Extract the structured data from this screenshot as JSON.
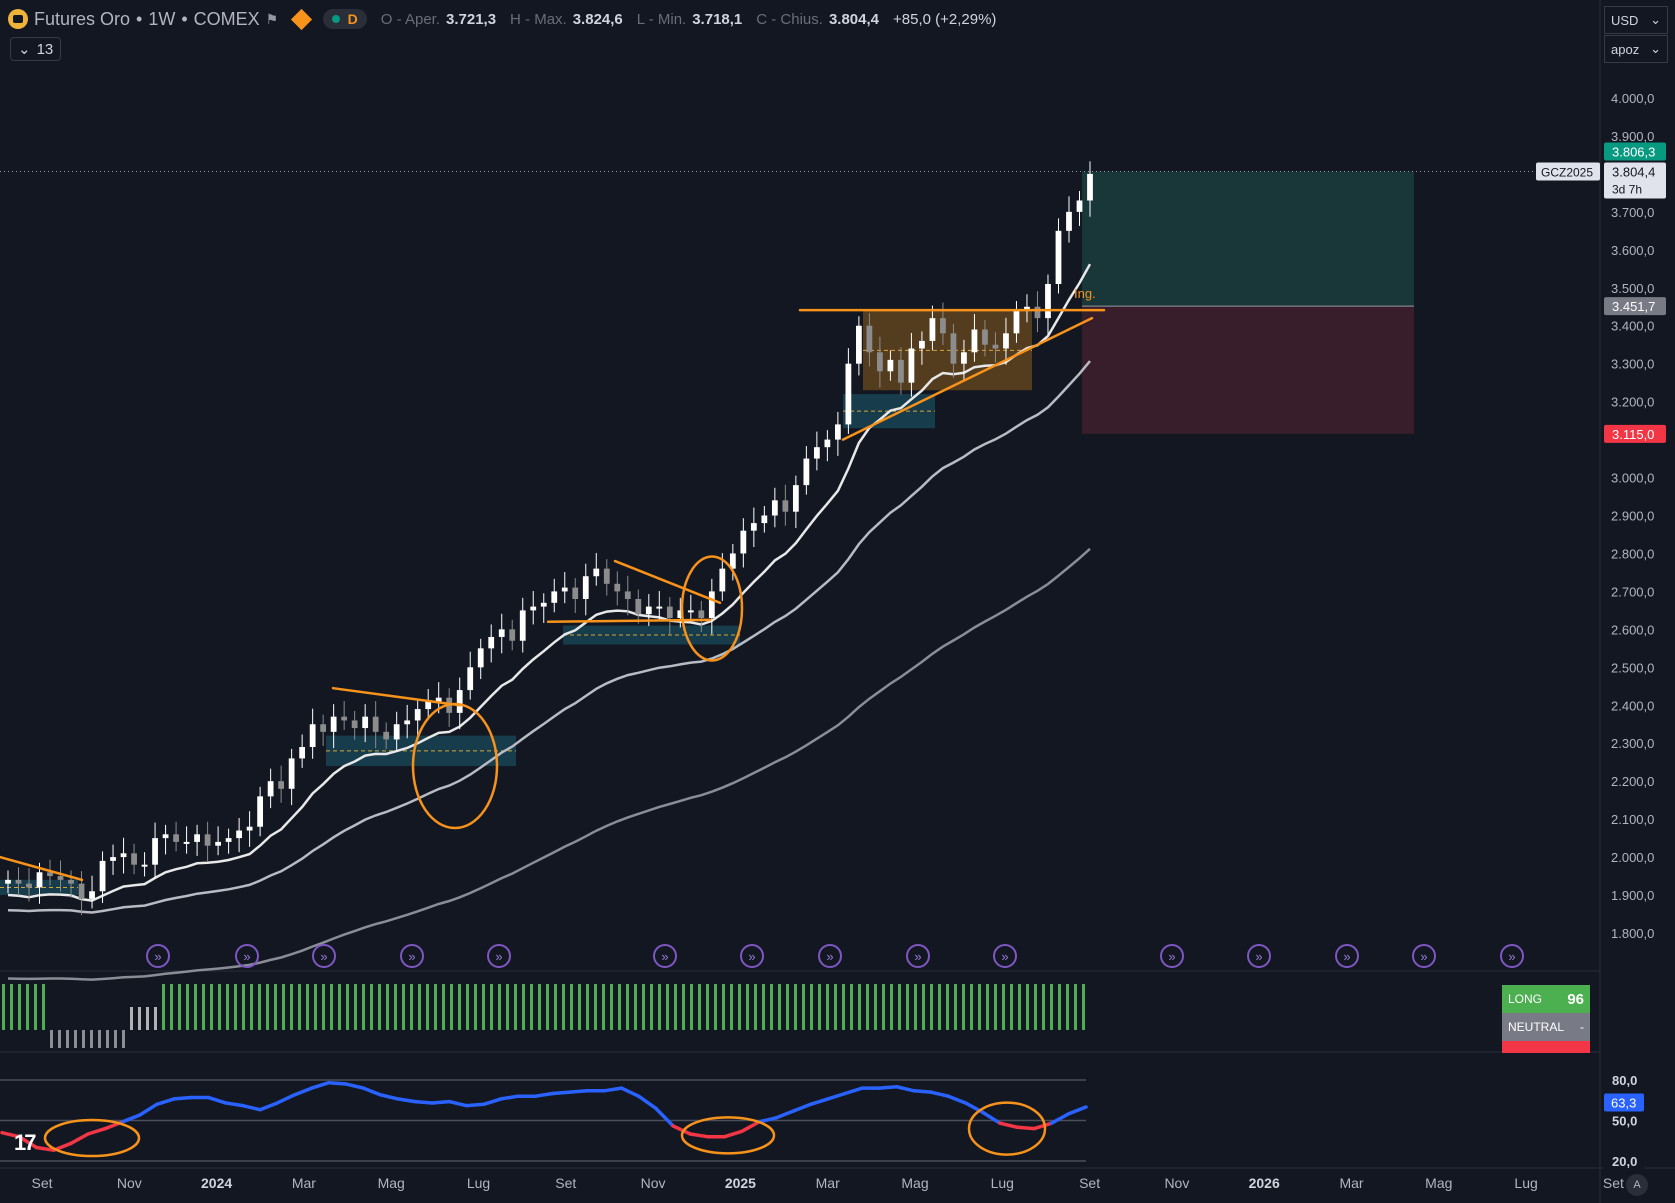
{
  "header": {
    "symbol": "Futures Oro",
    "interval": "1W",
    "exchange": "COMEX",
    "d_badge": "D",
    "ohlc": {
      "open_label": "O - Aper.",
      "open_value": "3.721,3",
      "high_label": "H - Max.",
      "high_value": "3.824,6",
      "low_label": "L - Min.",
      "low_value": "3.718,1",
      "close_label": "C - Chius.",
      "close_value": "3.804,4",
      "change": "+85,0 (+2,29%)"
    },
    "collapse_count": "13"
  },
  "right_controls": {
    "currency": "USD",
    "unit": "apoz"
  },
  "colors": {
    "background": "#131722",
    "bull": "#ffffff",
    "bear": "#8c8c8c",
    "teal_label": "#089981",
    "red_label": "#f23645",
    "orange": "#f7931a",
    "tp_zone": "#1b3b3b",
    "sl_zone": "#3d1f2b",
    "range_box": "#6b4a1e",
    "demand_box": "#1a4a59"
  },
  "chart_data": {
    "type": "candlestick",
    "price_axis_ticks": [
      "4.000,0",
      "3.900,0",
      "3.700,0",
      "3.600,0",
      "3.500,0",
      "3.400,0",
      "3.300,0",
      "3.200,0",
      "3.000,0",
      "2.900,0",
      "2.800,0",
      "2.700,0",
      "2.600,0",
      "2.500,0",
      "2.400,0",
      "2.300,0",
      "2.200,0",
      "2.100,0",
      "2.000,0",
      "1.900,0",
      "1.800,0"
    ],
    "price_range": [
      1740,
      4100
    ],
    "time_axis_labels": [
      "Set",
      "Nov",
      "2024",
      "Mar",
      "Mag",
      "Lug",
      "Set",
      "Nov",
      "2025",
      "Mar",
      "Mag",
      "Lug",
      "Set",
      "Nov",
      "2026",
      "Mar",
      "Mag",
      "Lug",
      "Set"
    ],
    "price_labels": {
      "teal_top": "3.806,3",
      "last": "3.804,4",
      "countdown": "3d 7h",
      "symbol_tag": "GCZ2025",
      "entry": "3.451,7",
      "stop": "3.115,0"
    },
    "position": {
      "entry_price": 3451.7,
      "target_price": 3806.3,
      "stop_price": 3115.0,
      "entry_text": "Ing."
    },
    "candles_close_approx": [
      1940,
      1930,
      1920,
      1960,
      1950,
      1940,
      1930,
      1890,
      1910,
      1990,
      2000,
      2010,
      1980,
      1980,
      2050,
      2060,
      2040,
      2040,
      2060,
      2030,
      2040,
      2050,
      2070,
      2080,
      2160,
      2200,
      2180,
      2260,
      2290,
      2350,
      2330,
      2370,
      2360,
      2340,
      2370,
      2330,
      2310,
      2350,
      2360,
      2390,
      2410,
      2420,
      2380,
      2440,
      2500,
      2550,
      2580,
      2600,
      2570,
      2650,
      2660,
      2670,
      2700,
      2710,
      2680,
      2740,
      2760,
      2720,
      2700,
      2680,
      2640,
      2660,
      2660,
      2630,
      2650,
      2650,
      2630,
      2700,
      2760,
      2800,
      2860,
      2880,
      2900,
      2940,
      2910,
      2980,
      3050,
      3080,
      3100,
      3140,
      3300,
      3400,
      3330,
      3280,
      3310,
      3250,
      3340,
      3360,
      3420,
      3380,
      3300,
      3330,
      3390,
      3350,
      3340,
      3380,
      3440,
      3450,
      3420,
      3510,
      3650,
      3700,
      3730,
      3800
    ]
  },
  "indicator_panel": {
    "signal_long_label": "LONG",
    "signal_long_value": "96",
    "signal_neutral_label": "NEUTRAL",
    "signal_neutral_value": "-"
  },
  "oscillator": {
    "ticks": [
      "80,0",
      "50,0",
      "20,0"
    ],
    "current": "63,3",
    "range": [
      10,
      90
    ]
  }
}
